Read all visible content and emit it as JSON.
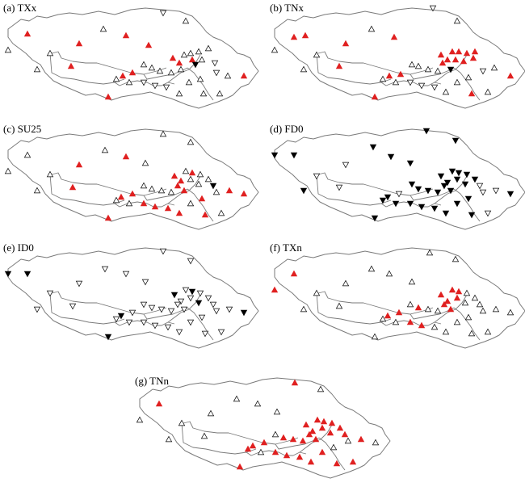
{
  "figure": {
    "panels": [
      {
        "id": "a",
        "label": "(a) TXx"
      },
      {
        "id": "b",
        "label": "(b) TNx"
      },
      {
        "id": "c",
        "label": "(c) SU25"
      },
      {
        "id": "d",
        "label": "(d) FD0"
      },
      {
        "id": "e",
        "label": "(e) ID0"
      },
      {
        "id": "f",
        "label": "(f) TXn"
      },
      {
        "id": "g",
        "label": "(g) TNn"
      }
    ]
  },
  "colors": {
    "significant_increase": "#e02020",
    "significant_decrease": "#000000",
    "nonsignificant": "#000000",
    "boundary": "#7a7a7a"
  },
  "marker_legend": {
    "up_red": "filled red upward triangle",
    "up_hollow": "hollow upward triangle",
    "down_black": "filled black downward triangle",
    "down_hollow": "hollow downward triangle"
  }
}
